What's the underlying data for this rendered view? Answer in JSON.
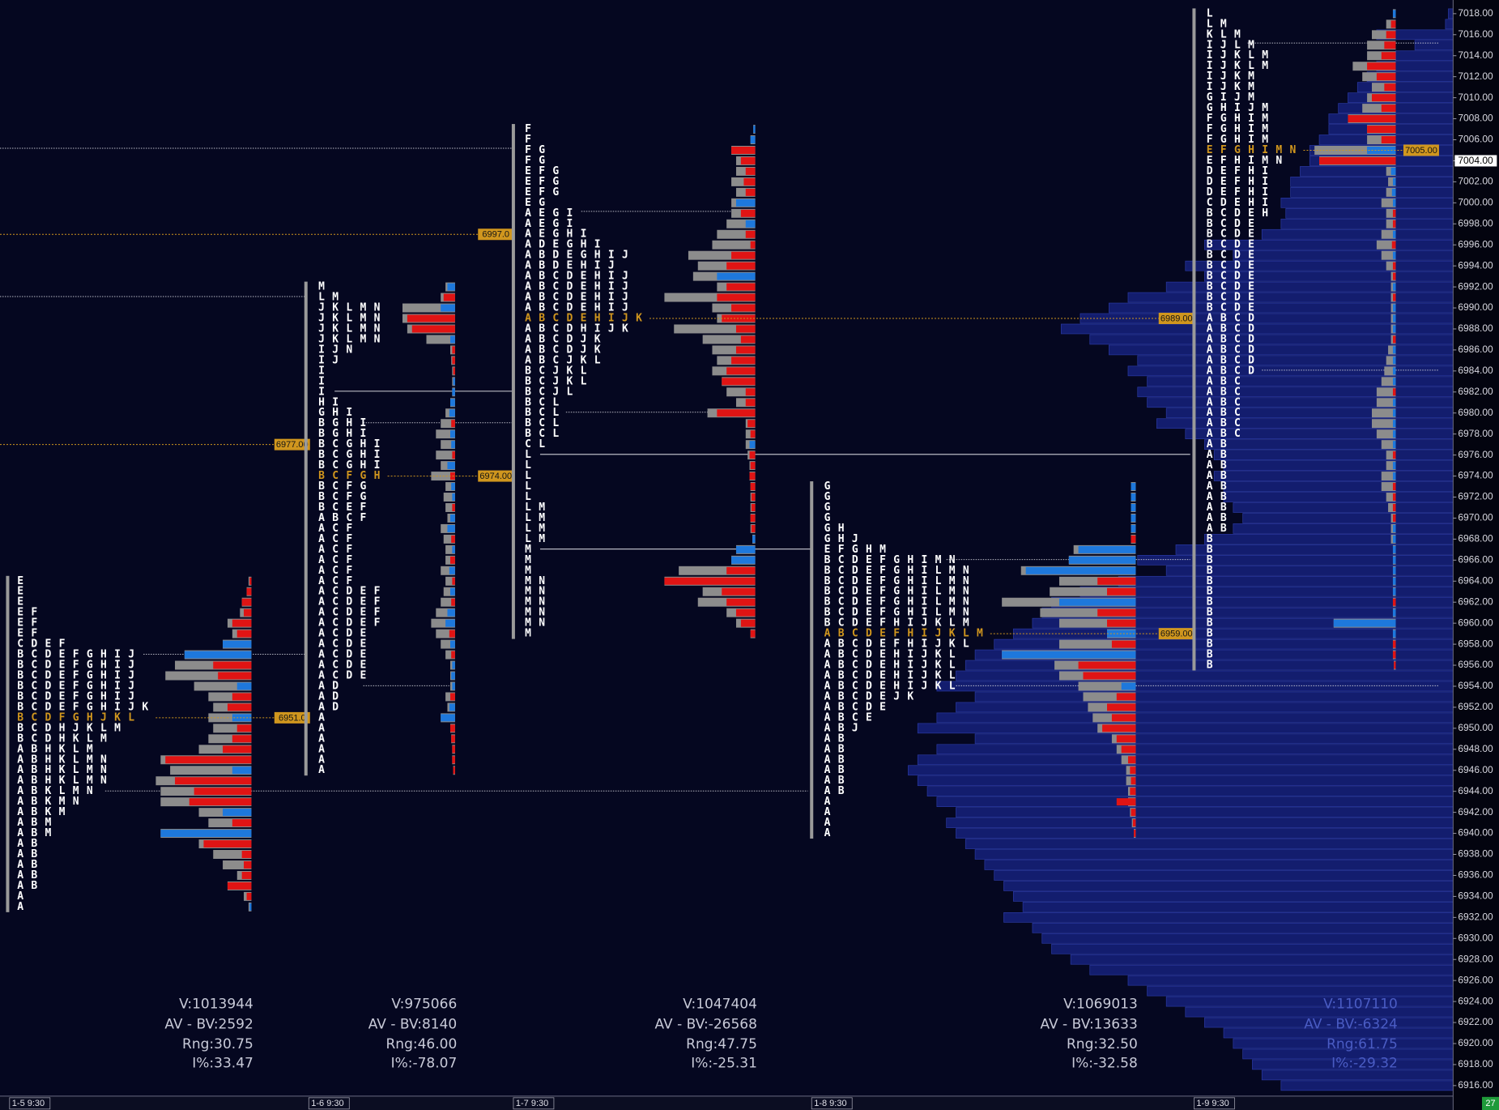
{
  "chart_data": {
    "type": "market_profile",
    "ylim": [
      6915,
      7019.3
    ],
    "row_size": 1,
    "yticks": [
      {
        "value": 7018,
        "label": "7018.00"
      },
      {
        "value": 7016,
        "label": "7016.00"
      },
      {
        "value": 7014,
        "label": "7014.00"
      },
      {
        "value": 7012,
        "label": "7012.00"
      },
      {
        "value": 7010,
        "label": "7010.00"
      },
      {
        "value": 7008,
        "label": "7008.00"
      },
      {
        "value": 7006,
        "label": "7006.00"
      },
      {
        "value": 7004,
        "label": "7004.00"
      },
      {
        "value": 7002,
        "label": "7002.00"
      },
      {
        "value": 7000,
        "label": "7000.00"
      },
      {
        "value": 6998,
        "label": "6998.00"
      },
      {
        "value": 6996,
        "label": "6996.00"
      },
      {
        "value": 6994,
        "label": "6994.00"
      },
      {
        "value": 6992,
        "label": "6992.00"
      },
      {
        "value": 6990,
        "label": "6990.00"
      },
      {
        "value": 6988,
        "label": "6988.00"
      },
      {
        "value": 6986,
        "label": "6986.00"
      },
      {
        "value": 6984,
        "label": "6984.00"
      },
      {
        "value": 6982,
        "label": "6982.00"
      },
      {
        "value": 6980,
        "label": "6980.00"
      },
      {
        "value": 6978,
        "label": "6978.00"
      },
      {
        "value": 6976,
        "label": "6976.00"
      },
      {
        "value": 6974,
        "label": "6974.00"
      },
      {
        "value": 6972,
        "label": "6972.00"
      },
      {
        "value": 6970,
        "label": "6970.00"
      },
      {
        "value": 6968,
        "label": "6968.00"
      },
      {
        "value": 6966,
        "label": "6966.00"
      },
      {
        "value": 6964,
        "label": "6964.00"
      },
      {
        "value": 6962,
        "label": "6962.00"
      },
      {
        "value": 6960,
        "label": "6960.00"
      },
      {
        "value": 6958,
        "label": "6958.00"
      },
      {
        "value": 6956,
        "label": "6956.00"
      },
      {
        "value": 6954,
        "label": "6954.00"
      },
      {
        "value": 6952,
        "label": "6952.00"
      },
      {
        "value": 6950,
        "label": "6950.00"
      },
      {
        "value": 6948,
        "label": "6948.00"
      },
      {
        "value": 6946,
        "label": "6946.00"
      },
      {
        "value": 6944,
        "label": "6944.00"
      },
      {
        "value": 6942,
        "label": "6942.00"
      },
      {
        "value": 6940,
        "label": "6940.00"
      },
      {
        "value": 6938,
        "label": "6938.00"
      },
      {
        "value": 6936,
        "label": "6936.00"
      },
      {
        "value": 6934,
        "label": "6934.00"
      },
      {
        "value": 6932,
        "label": "6932.00"
      },
      {
        "value": 6930,
        "label": "6930.00"
      },
      {
        "value": 6928,
        "label": "6928.00"
      },
      {
        "value": 6926,
        "label": "6926.00"
      },
      {
        "value": 6924,
        "label": "6924.00"
      },
      {
        "value": 6922,
        "label": "6922.00"
      },
      {
        "value": 6920,
        "label": "6920.00"
      },
      {
        "value": 6918,
        "label": "6918.00"
      },
      {
        "value": 6916,
        "label": "6916.00"
      }
    ],
    "colors": {
      "volume": "#8c8c8c",
      "buy": "#1e78dc",
      "sell": "#e01414",
      "composite": "#16217c",
      "poc": "#d0961e",
      "letters": "#ffffff"
    },
    "last_price": {
      "value": 7004,
      "label": "7004.00"
    },
    "badge": "27",
    "naked_levels": [
      {
        "value": 6997,
        "label": "6997.0"
      },
      {
        "value": 6977,
        "label": "6977.00"
      }
    ],
    "composite": {
      "top": 7018,
      "values": [
        5,
        8,
        80,
        40,
        60,
        80,
        90,
        100,
        110,
        120,
        130,
        130,
        140,
        150,
        150,
        160,
        170,
        170,
        180,
        175,
        180,
        200,
        260,
        230,
        280,
        260,
        300,
        340,
        360,
        390,
        410,
        380,
        360,
        330,
        340,
        320,
        330,
        320,
        300,
        310,
        280,
        260,
        250,
        240,
        250,
        240,
        240,
        230,
        220,
        230,
        260,
        290,
        330,
        300,
        350,
        390,
        420,
        430,
        440,
        460,
        480,
        500,
        510,
        520,
        540,
        500,
        520,
        540,
        560,
        500,
        540,
        560,
        570,
        560,
        550,
        540,
        520,
        530,
        520,
        510,
        500,
        490,
        480,
        470,
        460,
        450,
        470,
        440,
        430,
        420,
        400,
        380,
        340,
        320,
        300,
        280,
        260,
        240,
        230,
        220,
        210,
        200,
        180
      ]
    },
    "sessions": [
      {
        "label": "1-5 9:30",
        "top": 6964,
        "rows": [
          "E",
          "E",
          "E",
          "EF",
          "EF",
          "EF",
          "CDEF",
          "BCDEFGHIJ",
          "BCDEFGHIJ",
          "BCDEFGHIJ",
          "BCDEFGHIJ",
          "BCDEFGHIJ",
          "BCDEFGHIJK",
          "BCDFGHJKL",
          "BCDHJKLM",
          "BCDHKLM",
          "ABHKLM",
          "ABHKLMN",
          "ABHKLMN",
          "ABHKLMN",
          "ABKLMN",
          "ABKMN",
          "ABKM",
          "ABM",
          "ABM",
          "AB",
          "AB",
          "AB",
          "AB",
          "AB",
          "A",
          "A"
        ],
        "volume": [
          3,
          5,
          10,
          12,
          25,
          20,
          30,
          70,
          80,
          90,
          60,
          45,
          40,
          45,
          40,
          45,
          55,
          95,
          85,
          100,
          95,
          95,
          55,
          45,
          95,
          55,
          40,
          30,
          15,
          25,
          8,
          3
        ],
        "delta": [
          -2,
          -5,
          -10,
          -8,
          -20,
          -15,
          30,
          70,
          -40,
          -35,
          15,
          -20,
          -25,
          20,
          -15,
          -20,
          -30,
          -90,
          20,
          -80,
          -60,
          -65,
          30,
          -20,
          95,
          -50,
          -10,
          -8,
          -10,
          -25,
          -5,
          2
        ],
        "poc": {
          "value": 6951,
          "label": "6951.0"
        },
        "stats": [
          "V:1013944",
          "AV - BV:2592",
          "Rng:30.75",
          "I%:33.47"
        ]
      },
      {
        "label": "1-6 9:30",
        "top": 6992,
        "rows": [
          "M",
          "LM",
          "JKLMN",
          "JKLMN",
          "JKLMN",
          "JKLMN",
          "IJN",
          "IJ",
          "I",
          "I",
          "I",
          "HI",
          "GHI",
          "BGHI",
          "BGHI",
          "BCGHI",
          "BCGHI",
          "BCGHI",
          "BCFGH",
          "BCFG",
          "BCFG",
          "BCEF",
          "ABCF",
          "ACF",
          "ACF",
          "ACF",
          "ACF",
          "ACF",
          "ACF",
          "ACDEF",
          "ACDEF",
          "ACDEF",
          "ACDEF",
          "ACDE",
          "ACDE",
          "ACDE",
          "ACDE",
          "ACDE",
          "AD",
          "AD",
          "AD",
          "A",
          "A",
          "A",
          "A",
          "A",
          "A"
        ],
        "volume": [
          10,
          15,
          55,
          55,
          50,
          30,
          5,
          4,
          3,
          3,
          3,
          5,
          10,
          15,
          20,
          15,
          20,
          15,
          25,
          10,
          12,
          10,
          8,
          15,
          12,
          10,
          10,
          15,
          10,
          12,
          15,
          20,
          25,
          20,
          15,
          10,
          5,
          5,
          5,
          10,
          8,
          15,
          5,
          4,
          3,
          3,
          2
        ],
        "delta": [
          8,
          -12,
          15,
          -50,
          -45,
          5,
          -3,
          -3,
          -2,
          2,
          3,
          5,
          6,
          -4,
          5,
          4,
          -3,
          8,
          -5,
          4,
          3,
          -3,
          5,
          8,
          -4,
          3,
          -5,
          6,
          -3,
          5,
          -4,
          8,
          10,
          -6,
          5,
          -4,
          3,
          4,
          3,
          -5,
          6,
          15,
          -5,
          -4,
          -3,
          -3,
          -2
        ],
        "poc": {
          "value": 6974,
          "label": "6974.00"
        },
        "stats": [
          "V:975066",
          "AV - BV:8140",
          "Rng:46.00",
          "I%:-78.07"
        ]
      },
      {
        "label": "1-7 9:30",
        "top": 7007,
        "rows": [
          "F",
          "F",
          "FG",
          "FG",
          "EFG",
          "EFG",
          "EFG",
          "EG",
          "AEGI",
          "AEGI",
          "AEGHI",
          "ADEGHI",
          "ABDEGHIJ",
          "ABDEHIJ",
          "ABCDEHIJ",
          "ABCDEHIJ",
          "ABCDEHIJ",
          "ABCDEHIJ",
          "ABCDEHIJK",
          "ABCDHIJK",
          "ABCDJK",
          "ABCDJK",
          "ABCJKL",
          "BCJKL",
          "BCJKL",
          "BCJL",
          "BCL",
          "BCL",
          "BCL",
          "BCL",
          "CL",
          "L",
          "L",
          "L",
          "L",
          "L",
          "LM",
          "LM",
          "LM",
          "LM",
          "M",
          "M",
          "M",
          "MN",
          "MN",
          "MN",
          "MN",
          "MN",
          "M"
        ],
        "volume": [
          2,
          5,
          25,
          20,
          20,
          25,
          20,
          25,
          25,
          30,
          40,
          45,
          70,
          60,
          65,
          40,
          95,
          45,
          40,
          85,
          55,
          45,
          40,
          45,
          35,
          30,
          20,
          50,
          10,
          10,
          10,
          8,
          6,
          6,
          5,
          5,
          5,
          5,
          5,
          3,
          20,
          25,
          80,
          95,
          55,
          60,
          30,
          20,
          5
        ],
        "delta": [
          2,
          5,
          -25,
          -15,
          -10,
          -12,
          -10,
          20,
          -15,
          10,
          -10,
          -5,
          -25,
          -30,
          40,
          -30,
          -40,
          -25,
          -35,
          -20,
          -15,
          -20,
          -25,
          -30,
          -35,
          -10,
          -10,
          -40,
          -8,
          -5,
          6,
          -6,
          -5,
          -6,
          -5,
          -4,
          -4,
          -5,
          -4,
          3,
          20,
          25,
          -30,
          -95,
          -35,
          -30,
          -20,
          -15,
          -5
        ],
        "poc": {
          "value": 6989,
          "label": "6989.00"
        },
        "stats": [
          "V:1047404",
          "AV - BV:-26568",
          "Rng:47.75",
          "I%:-25.31"
        ]
      },
      {
        "label": "1-8 9:30",
        "top": 6973,
        "rows": [
          "G",
          "G",
          "G",
          "G",
          "GH",
          "GHJ",
          "EFGHM",
          "BCDEFGHIMN",
          "BCDEFGHILMN",
          "BCDEFGHILMN",
          "BCDEFGHILMN",
          "BCDEFGHILMN",
          "BCDEFGHILMN",
          "BCDEFHIJKLM",
          "ABCDEFHIJKLM",
          "ABCDEFHIJKL",
          "ABCDEHIJKL",
          "ABCDEHIJKL",
          "ABCDEHIJKL",
          "ABCDEHIJKL",
          "ABCDEJK",
          "ABCDE",
          "ABCE",
          "ABJ",
          "AB",
          "AB",
          "AB",
          "AB",
          "AB",
          "AB",
          "A",
          "A",
          "A",
          "A"
        ],
        "volume": [
          5,
          5,
          5,
          5,
          5,
          5,
          65,
          70,
          120,
          80,
          90,
          140,
          100,
          80,
          30,
          80,
          140,
          85,
          80,
          60,
          55,
          50,
          45,
          40,
          25,
          20,
          15,
          10,
          10,
          8,
          8,
          6,
          4,
          2
        ],
        "delta": [
          5,
          5,
          5,
          5,
          5,
          -5,
          60,
          70,
          115,
          -40,
          -30,
          80,
          -40,
          -30,
          30,
          -25,
          140,
          -60,
          -55,
          15,
          -20,
          -30,
          -25,
          -35,
          -20,
          -15,
          -8,
          -6,
          -5,
          -6,
          -20,
          -5,
          -3,
          -2
        ],
        "poc": {
          "value": 6959,
          "label": "6959.00"
        },
        "stats": [
          "V:1069013",
          "AV - BV:13633",
          "Rng:32.50",
          "I%:-32.58"
        ]
      },
      {
        "label": "1-9 9:30",
        "top": 7018,
        "rows": [
          "L",
          "LM",
          "KLM",
          "IJLM",
          "IJKLM",
          "IJKLM",
          "IJKM",
          "IJKM",
          "GIJM",
          "GHIJM",
          "FGHIM",
          "FGHIM",
          "FGHIM",
          "EFGHIMN",
          "EFHIMN",
          "DEFHI",
          "DEFHI",
          "DEFHI",
          "CDEHI",
          "BCDEH",
          "BCDE",
          "BCDE",
          "BCDE",
          "BCDE",
          "BCDE",
          "BCDE",
          "BCDE",
          "BCDE",
          "BCDE",
          "ABCD",
          "ABCD",
          "ABCD",
          "ABCD",
          "ABCD",
          "ABCD",
          "ABC",
          "ABC",
          "ABC",
          "ABC",
          "ABC",
          "ABC",
          "AB",
          "AB",
          "AB",
          "AB",
          "AB",
          "AB",
          "AB",
          "AB",
          "AB",
          "B",
          "B",
          "B",
          "B",
          "B",
          "B",
          "B",
          "B",
          "B",
          "B",
          "B",
          "B",
          "B"
        ],
        "volume": [
          3,
          10,
          25,
          30,
          30,
          45,
          35,
          25,
          30,
          35,
          50,
          30,
          30,
          85,
          80,
          10,
          8,
          10,
          15,
          10,
          10,
          15,
          20,
          15,
          10,
          5,
          5,
          5,
          5,
          5,
          5,
          5,
          8,
          10,
          12,
          15,
          20,
          20,
          25,
          25,
          20,
          15,
          10,
          10,
          15,
          15,
          10,
          8,
          5,
          5,
          5,
          3,
          3,
          3,
          3,
          3,
          3,
          3,
          65,
          3,
          3,
          3,
          2
        ],
        "delta": [
          3,
          -5,
          -10,
          -12,
          -15,
          -30,
          -20,
          -12,
          -25,
          -15,
          -50,
          -30,
          -15,
          30,
          -80,
          5,
          3,
          4,
          3,
          -3,
          -3,
          3,
          -4,
          3,
          -3,
          -3,
          3,
          -3,
          3,
          3,
          3,
          -3,
          3,
          3,
          3,
          3,
          -3,
          3,
          3,
          3,
          3,
          3,
          -3,
          3,
          3,
          -3,
          -3,
          -3,
          -3,
          3,
          3,
          3,
          3,
          3,
          3,
          3,
          -3,
          3,
          65,
          3,
          -3,
          -3,
          -2
        ],
        "poc": {
          "value": 7005,
          "label": "7005.00"
        },
        "stats": [
          "V:1107110",
          "AV - BV:-6324",
          "Rng:61.75",
          "I%:-29.32"
        ]
      }
    ]
  }
}
